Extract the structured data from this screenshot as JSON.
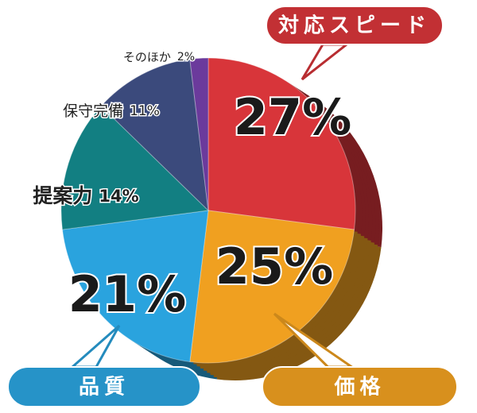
{
  "chart_data": {
    "type": "pie",
    "categories": [
      "対応スピード",
      "価格",
      "品質",
      "提案力",
      "保守完備",
      "そのほか"
    ],
    "values": [
      27,
      25,
      21,
      14,
      11,
      2
    ],
    "value_labels": [
      "27%",
      "25%",
      "21%",
      "14%",
      "11%",
      "2%"
    ],
    "colors": [
      "#d8353a",
      "#f0a020",
      "#2aa3de",
      "#127f82",
      "#3b4a7c",
      "#6b3a9c"
    ]
  }
}
